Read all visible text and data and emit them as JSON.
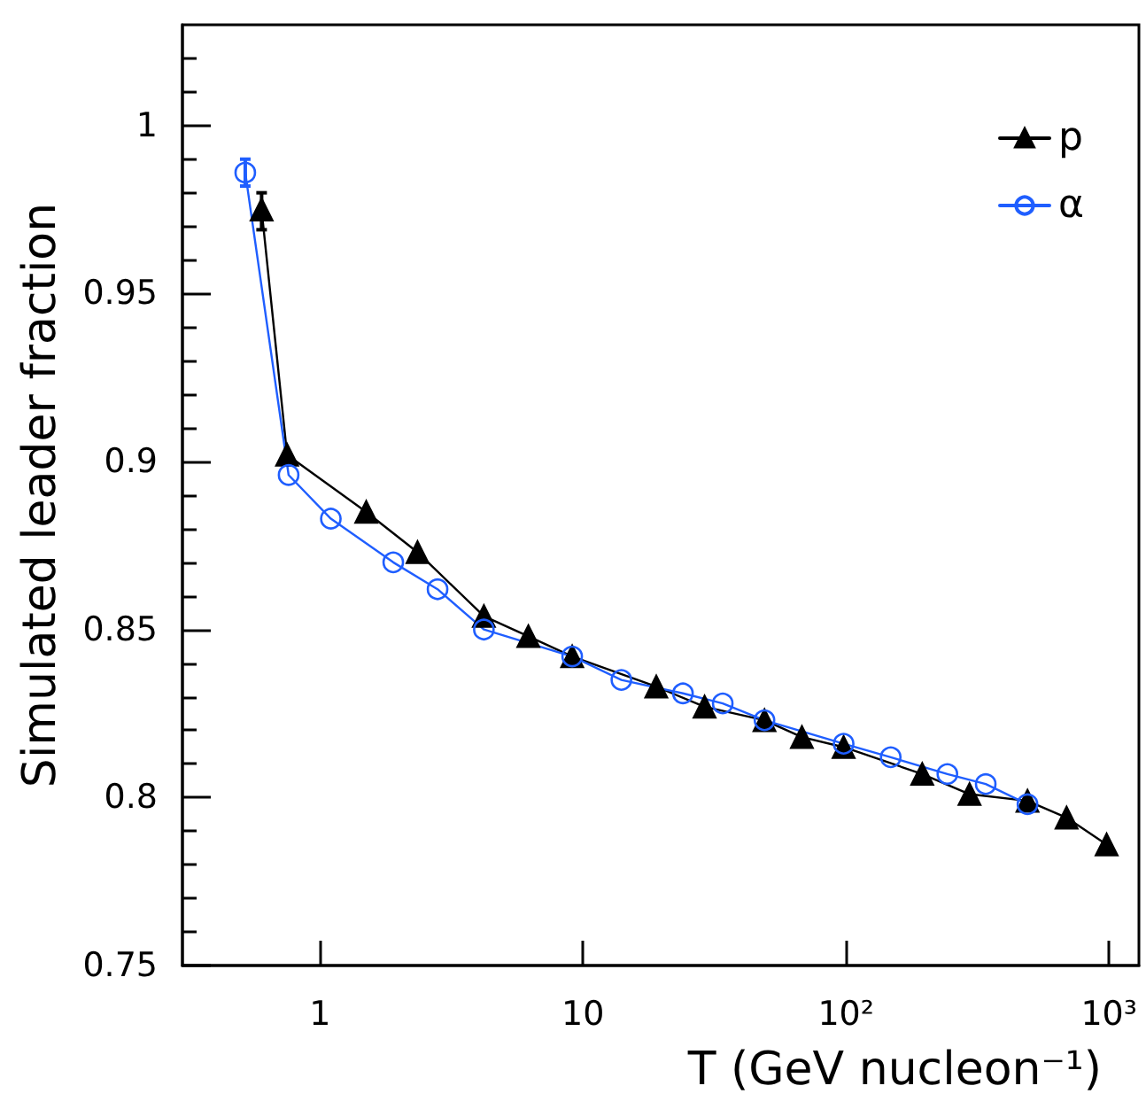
{
  "chart_data": {
    "type": "line",
    "xlabel": "T (GeV nucleon⁻¹)",
    "ylabel": "Simulated leader fraction",
    "log": "x",
    "xlim": [
      0.3,
      1300
    ],
    "xticks": [
      1,
      10,
      {
        "value": 100,
        "label": "10²"
      },
      {
        "value": 1000,
        "label": "10³"
      }
    ],
    "ylim": [
      0.75,
      1.03
    ],
    "yticks": [
      0.75,
      0.8,
      0.85,
      0.9,
      0.95,
      1
    ],
    "grid": false,
    "legend": "top right",
    "line_style": "solid",
    "series": [
      {
        "name": "p",
        "color": "#000000",
        "marker": "triangle",
        "x": [
          0.6,
          0.75,
          1.5,
          2.35,
          4.2,
          6.2,
          9.1,
          19,
          29,
          49,
          68,
          98,
          195,
          295,
          490,
          690,
          980
        ],
        "values": [
          0.975,
          0.902,
          0.885,
          0.873,
          0.854,
          0.848,
          0.842,
          0.833,
          0.827,
          0.823,
          0.818,
          0.815,
          0.807,
          0.801,
          0.799,
          0.794,
          0.786
        ],
        "errors": [
          [
            0.969,
            0.98
          ],
          null,
          null,
          null,
          null,
          null,
          null,
          null,
          null,
          null,
          null,
          null,
          null,
          null,
          null,
          null,
          null
        ]
      },
      {
        "name": "α",
        "color": "#1f5eff",
        "marker": "circle",
        "x": [
          0.52,
          0.76,
          1.1,
          1.9,
          2.8,
          4.2,
          9.1,
          14,
          24,
          34,
          49,
          98,
          148,
          243,
          340,
          490
        ],
        "values": [
          0.986,
          0.896,
          0.883,
          0.87,
          0.862,
          0.85,
          0.842,
          0.835,
          0.831,
          0.828,
          0.823,
          0.816,
          0.812,
          0.807,
          0.804,
          0.798
        ],
        "errors": [
          [
            0.982,
            0.99
          ],
          null,
          null,
          null,
          null,
          null,
          null,
          null,
          null,
          null,
          null,
          null,
          null,
          null,
          null,
          null
        ]
      }
    ]
  }
}
